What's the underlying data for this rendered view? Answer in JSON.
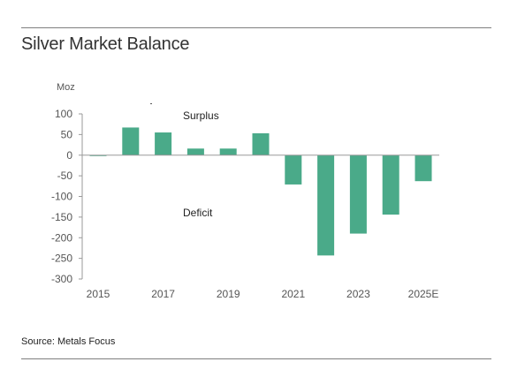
{
  "title": "Silver Market Balance",
  "source": "Source: Metals Focus",
  "chart_data": {
    "type": "bar",
    "unit": "Moz",
    "categories": [
      "2015",
      "2016",
      "2017",
      "2018",
      "2019",
      "2020",
      "2021",
      "2022",
      "2023",
      "2024",
      "2025E"
    ],
    "tick_labels_x": [
      "2015",
      "2017",
      "2019",
      "2021",
      "2023",
      "2025E"
    ],
    "values": [
      -2,
      67,
      55,
      16,
      16,
      53,
      -71,
      -243,
      -190,
      -144,
      -63
    ],
    "ylim": [
      -300,
      100
    ],
    "yticks": [
      100,
      50,
      0,
      -50,
      -100,
      -150,
      -200,
      -250,
      -300
    ],
    "ytick_labels": [
      "100",
      "50",
      "0",
      "-50",
      "-100",
      "-150",
      "-200",
      "-250",
      "-300"
    ],
    "annotations": [
      "Surplus",
      "Deficit"
    ],
    "bar_color": "#4aaa89",
    "grid": false,
    "legend": "none"
  }
}
